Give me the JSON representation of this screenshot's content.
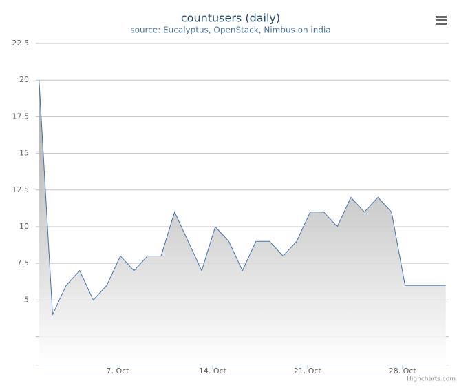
{
  "chart_data": {
    "type": "area",
    "title": "countusers (daily)",
    "subtitle": "source: Eucalyptus, OpenStack, Nimbus on india",
    "x": [
      1.2,
      2.2,
      3.2,
      4.2,
      5.2,
      6.2,
      7.2,
      8.2,
      9.2,
      10.2,
      11.2,
      12.2,
      13.2,
      14.2,
      15.2,
      16.2,
      17.2,
      18.2,
      19.2,
      20.2,
      21.2,
      22.2,
      23.2,
      24.2,
      25.2,
      26.2,
      27.2,
      28.2,
      29.2,
      30.2,
      31.2
    ],
    "values": [
      20,
      4,
      6,
      7,
      5,
      6,
      8,
      7,
      8,
      8,
      11,
      9,
      7,
      10,
      9,
      7,
      9,
      9,
      8,
      9,
      11,
      11,
      10,
      12,
      11,
      12,
      11,
      6,
      6,
      6,
      6
    ],
    "color": "#4572a7",
    "xlim": [
      0.96,
      31.42
    ],
    "xticks": [
      {
        "value": 7,
        "label": "7. Oct"
      },
      {
        "value": 14,
        "label": "14. Oct"
      },
      {
        "value": 21,
        "label": "21. Oct"
      },
      {
        "value": 28,
        "label": "28. Oct"
      }
    ],
    "ylim": [
      0.6,
      22.5
    ],
    "yticks": [
      5,
      7.5,
      10,
      12.5,
      15,
      17.5,
      20,
      22.5
    ],
    "yticks_unlabeled": [
      2.5
    ],
    "grid": true,
    "credits": "Highcharts.com"
  }
}
